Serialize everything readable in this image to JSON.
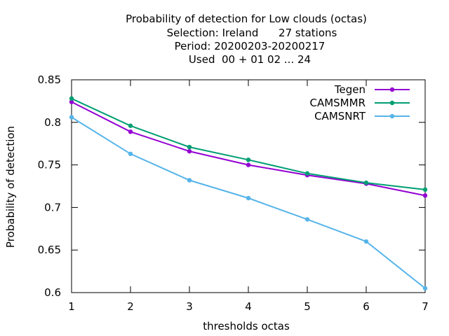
{
  "chart_data": {
    "type": "line",
    "title_lines": [
      "Probability of detection  for Low clouds (octas)",
      "Selection: Ireland      27 stations",
      "Period: 20200203-20200217",
      "Used  00 + 01 02 ... 24"
    ],
    "xlabel": "thresholds octas",
    "ylabel": "Probability of detection",
    "xlim": [
      1,
      7
    ],
    "ylim": [
      0.6,
      0.85
    ],
    "x_ticks": [
      "1",
      "2",
      "3",
      "4",
      "5",
      "6",
      "7"
    ],
    "y_ticks": [
      "0.6",
      "0.65",
      "0.7",
      "0.75",
      "0.8",
      "0.85"
    ],
    "x": [
      1,
      2,
      3,
      4,
      5,
      6,
      7
    ],
    "legend_position": "top-right",
    "grid": false,
    "series": [
      {
        "name": "Tegen",
        "color": "#9400d3",
        "marker": "filled-circle",
        "values": [
          0.824,
          0.789,
          0.766,
          0.75,
          0.738,
          0.728,
          0.714
        ]
      },
      {
        "name": "CAMSMMR",
        "color": "#009e73",
        "marker": "filled-circle",
        "values": [
          0.828,
          0.796,
          0.771,
          0.756,
          0.74,
          0.729,
          0.721
        ]
      },
      {
        "name": "CAMSNRT",
        "color": "#56b4e9",
        "marker": "filled-circle",
        "values": [
          0.806,
          0.763,
          0.732,
          0.711,
          0.686,
          0.66,
          0.605
        ]
      }
    ]
  }
}
